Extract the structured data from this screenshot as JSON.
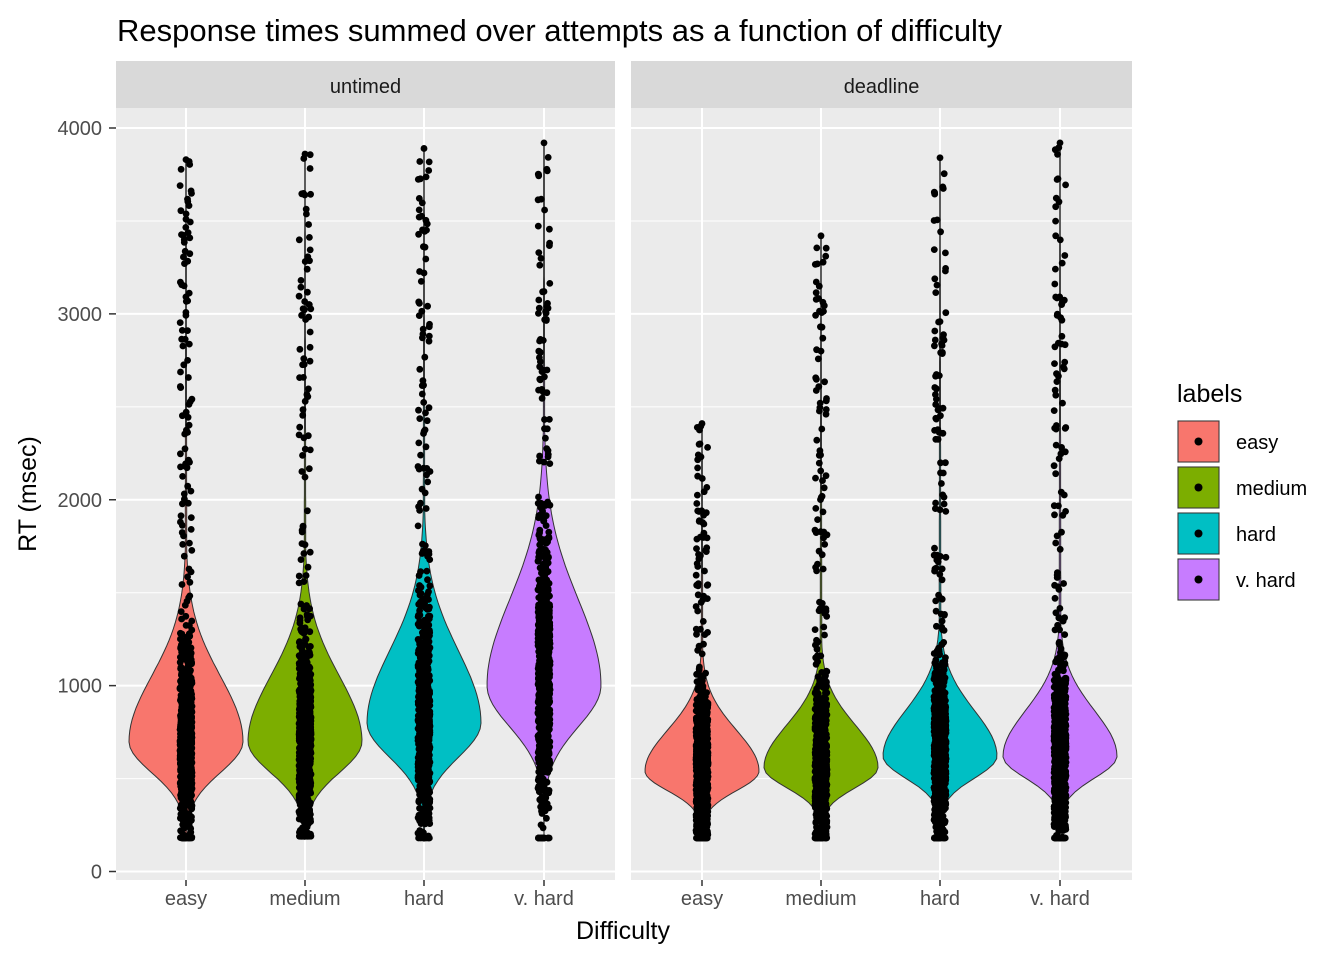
{
  "chart_data": {
    "type": "violin",
    "title": "Response times summed over attempts as a function of difficulty",
    "xlabel": "Difficulty",
    "ylabel": "RT (msec)",
    "ylim": [
      0,
      4100
    ],
    "yticks": [
      0,
      1000,
      2000,
      3000,
      4000
    ],
    "categories": [
      "easy",
      "medium",
      "hard",
      "v. hard"
    ],
    "legend": {
      "title": "labels",
      "placement": "right",
      "entries": [
        {
          "label": "easy",
          "color": "#F8766D"
        },
        {
          "label": "medium",
          "color": "#7CAE00"
        },
        {
          "label": "hard",
          "color": "#00BFC4"
        },
        {
          "label": "v. hard",
          "color": "#C77CFF"
        }
      ]
    },
    "panels": [
      {
        "label": "untimed",
        "series": [
          {
            "name": "easy",
            "min": 180,
            "max": 3830,
            "mode": 700
          },
          {
            "name": "medium",
            "min": 190,
            "max": 3860,
            "mode": 700
          },
          {
            "name": "hard",
            "min": 180,
            "max": 3890,
            "mode": 800
          },
          {
            "name": "v. hard",
            "min": 180,
            "max": 3920,
            "mode": 1000
          }
        ]
      },
      {
        "label": "deadline",
        "series": [
          {
            "name": "easy",
            "min": 180,
            "max": 2410,
            "mode": 540
          },
          {
            "name": "medium",
            "min": 180,
            "max": 3420,
            "mode": 560
          },
          {
            "name": "hard",
            "min": 180,
            "max": 3840,
            "mode": 620
          },
          {
            "name": "v. hard",
            "min": 180,
            "max": 3920,
            "mode": 620
          }
        ]
      }
    ]
  }
}
